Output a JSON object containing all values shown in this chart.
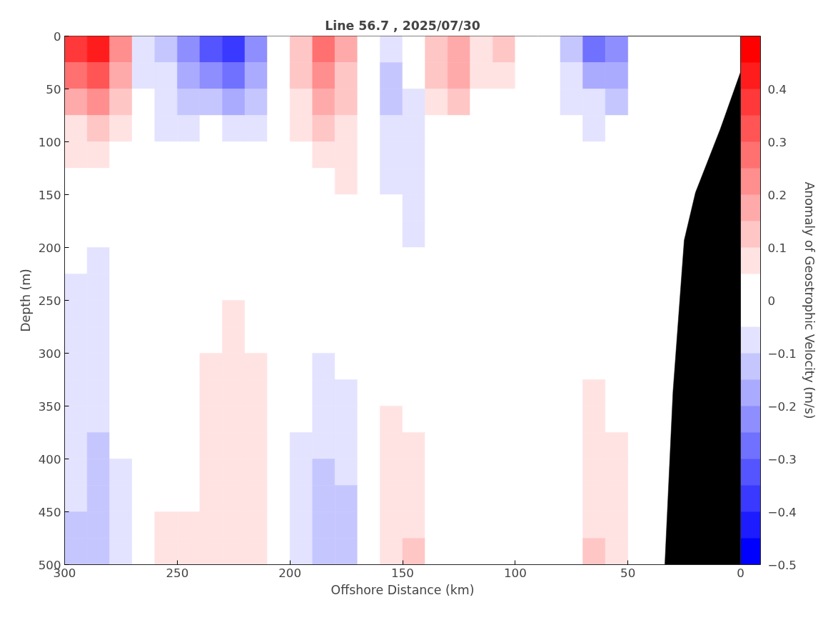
{
  "chart_data": {
    "type": "heatmap",
    "title": "Line 56.7 , 2025/07/30",
    "xlabel": "Offshore Distance (km)",
    "ylabel": "Depth (m)",
    "clabel": "Anomaly of Geostrophic Velocity (m/s)",
    "x": [
      295,
      285,
      275,
      265,
      255,
      245,
      235,
      225,
      215,
      205,
      195,
      185,
      175,
      165,
      155,
      145,
      135,
      125,
      115,
      105,
      95,
      85,
      75,
      65,
      55
    ],
    "y": [
      12.5,
      37.5,
      62.5,
      87.5,
      112.5,
      137.5,
      162.5,
      187.5,
      212.5,
      237.5,
      262.5,
      287.5,
      312.5,
      337.5,
      362.5,
      387.5,
      412.5,
      437.5,
      462.5,
      487.5
    ],
    "cells": [
      [
        0.375,
        0.425,
        0.225,
        -0.075,
        -0.125,
        -0.225,
        -0.325,
        -0.375,
        -0.225,
        0,
        0.125,
        0.275,
        0.175,
        0,
        -0.075,
        0,
        0.125,
        0.175,
        0.075,
        0.125,
        0,
        0,
        -0.125,
        -0.275,
        -0.225
      ],
      [
        0.275,
        0.325,
        0.175,
        -0.075,
        -0.075,
        -0.175,
        -0.225,
        -0.275,
        -0.175,
        0,
        0.125,
        0.225,
        0.125,
        0,
        -0.125,
        0,
        0.125,
        0.175,
        0.075,
        0.075,
        0,
        0,
        -0.075,
        -0.175,
        -0.175
      ],
      [
        0.175,
        0.225,
        0.125,
        0,
        -0.075,
        -0.125,
        -0.125,
        -0.175,
        -0.125,
        0,
        0.075,
        0.175,
        0.125,
        0,
        -0.125,
        -0.075,
        0.075,
        0.125,
        0,
        0,
        0,
        0,
        -0.075,
        -0.075,
        -0.125
      ],
      [
        0.075,
        0.125,
        0.075,
        0,
        -0.075,
        -0.075,
        0,
        -0.075,
        -0.075,
        0,
        0.075,
        0.125,
        0.075,
        0,
        -0.075,
        -0.075,
        0,
        0,
        0,
        0,
        0,
        0,
        0,
        -0.075,
        0
      ],
      [
        0.075,
        0.075,
        0,
        0,
        0,
        0,
        0,
        0,
        0,
        0,
        0,
        0.075,
        0.075,
        0,
        -0.075,
        -0.075,
        0,
        0,
        0,
        0,
        0,
        0,
        0,
        0,
        0
      ],
      [
        0,
        0,
        0,
        0,
        0,
        0,
        0,
        0,
        0,
        0,
        0,
        0,
        0.075,
        0,
        -0.075,
        -0.075,
        0,
        0,
        0,
        0,
        0,
        0,
        0,
        0,
        0
      ],
      [
        0,
        0,
        0,
        0,
        0,
        0,
        0,
        0,
        0,
        0,
        0,
        0,
        0,
        0,
        0,
        -0.075,
        0,
        0,
        0,
        0,
        0,
        0,
        0,
        0,
        0
      ],
      [
        0,
        0,
        0,
        0,
        0,
        0,
        0,
        0,
        0,
        0,
        0,
        0,
        0,
        0,
        0,
        -0.075,
        0,
        0,
        0,
        0,
        0,
        0,
        0,
        0,
        0
      ],
      [
        0,
        -0.075,
        0,
        0,
        0,
        0,
        0,
        0,
        0,
        0,
        0,
        0,
        0,
        0,
        0,
        0,
        0,
        0,
        0,
        0,
        0,
        0,
        0,
        0,
        0
      ],
      [
        -0.075,
        -0.075,
        0,
        0,
        0,
        0,
        0,
        0,
        0,
        0,
        0,
        0,
        0,
        0,
        0,
        0,
        0,
        0,
        0,
        0,
        0,
        0,
        0,
        0,
        0
      ],
      [
        -0.075,
        -0.075,
        0,
        0,
        0,
        0,
        0,
        0.075,
        0,
        0,
        0,
        0,
        0,
        0,
        0,
        0,
        0,
        0,
        0,
        0,
        0,
        0,
        0,
        0,
        0
      ],
      [
        -0.075,
        -0.075,
        0,
        0,
        0,
        0,
        0,
        0.075,
        0,
        0,
        0,
        0,
        0,
        0,
        0,
        0,
        0,
        0,
        0,
        0,
        0,
        0,
        0,
        0,
        0
      ],
      [
        -0.075,
        -0.075,
        0,
        0,
        0,
        0,
        0.075,
        0.075,
        0.075,
        0,
        0,
        -0.075,
        0,
        0,
        0,
        0,
        0,
        0,
        0,
        0,
        0,
        0,
        0,
        0,
        0
      ],
      [
        -0.075,
        -0.075,
        0,
        0,
        0,
        0,
        0.075,
        0.075,
        0.075,
        0,
        0,
        -0.075,
        -0.075,
        0,
        0,
        0,
        0,
        0,
        0,
        0,
        0,
        0,
        0,
        0.075,
        0
      ],
      [
        -0.075,
        -0.075,
        0,
        0,
        0,
        0,
        0.075,
        0.075,
        0.075,
        0,
        0,
        -0.075,
        -0.075,
        0,
        0.075,
        0,
        0,
        0,
        0,
        0,
        0,
        0,
        0,
        0.075,
        0
      ],
      [
        -0.075,
        -0.125,
        0,
        0,
        0,
        0,
        0.075,
        0.075,
        0.075,
        0,
        -0.075,
        -0.075,
        -0.075,
        0,
        0.075,
        0.075,
        0,
        0,
        0,
        0,
        0,
        0,
        0,
        0.075,
        0.075
      ],
      [
        -0.075,
        -0.125,
        -0.075,
        0,
        0,
        0,
        0.075,
        0.075,
        0.075,
        0,
        -0.075,
        -0.125,
        -0.075,
        0,
        0.075,
        0.075,
        0,
        0,
        0,
        0,
        0,
        0,
        0,
        0.075,
        0.075
      ],
      [
        -0.075,
        -0.125,
        -0.075,
        0,
        0,
        0,
        0.075,
        0.075,
        0.075,
        0,
        -0.075,
        -0.125,
        -0.125,
        0,
        0.075,
        0.075,
        0,
        0,
        0,
        0,
        0,
        0,
        0,
        0.075,
        0.075
      ],
      [
        -0.125,
        -0.125,
        -0.075,
        0,
        0.075,
        0.075,
        0.075,
        0.075,
        0.075,
        0,
        -0.075,
        -0.125,
        -0.125,
        0,
        0.075,
        0.075,
        0,
        0,
        0,
        0,
        0,
        0,
        0,
        0.075,
        0.075
      ],
      [
        -0.125,
        -0.125,
        -0.075,
        0,
        0.075,
        0.075,
        0.075,
        0.075,
        0.075,
        0,
        -0.075,
        -0.125,
        -0.125,
        0,
        0.075,
        0.125,
        0,
        0,
        0,
        0,
        0,
        0,
        0,
        0.125,
        0.075
      ]
    ],
    "colors": [
      "#0000ff",
      "#1c1cff",
      "#3939ff",
      "#5555ff",
      "#7171ff",
      "#8e8eff",
      "#aaaaff",
      "#c6c6ff",
      "#e3e3ff",
      "#ffffff",
      "#ffffff",
      "#ffe3e3",
      "#ffc6c6",
      "#ffaaaa",
      "#ff8e8e",
      "#ff7171",
      "#ff5555",
      "#ff3939",
      "#ff1c1c",
      "#ff0000"
    ],
    "clim": [
      -0.5,
      0.5
    ],
    "cticks": [
      -0.5,
      -0.4,
      -0.3,
      -0.2,
      -0.1,
      0,
      0.1,
      0.2,
      0.3,
      0.4
    ],
    "series": [
      {
        "type": "area",
        "color": "#000000",
        "x": [
          0,
          9,
          20,
          25,
          30,
          33.6,
          0
        ],
        "values": [
          34,
          88,
          148,
          193,
          337,
          500,
          500
        ]
      }
    ],
    "xlim": [
      300,
      0
    ],
    "xticks": [
      300,
      250,
      200,
      150,
      100,
      50,
      0
    ],
    "ylim": [
      500,
      0
    ],
    "yticks": [
      0,
      50,
      100,
      150,
      200,
      250,
      300,
      350,
      400,
      450,
      500
    ],
    "grid": false
  }
}
